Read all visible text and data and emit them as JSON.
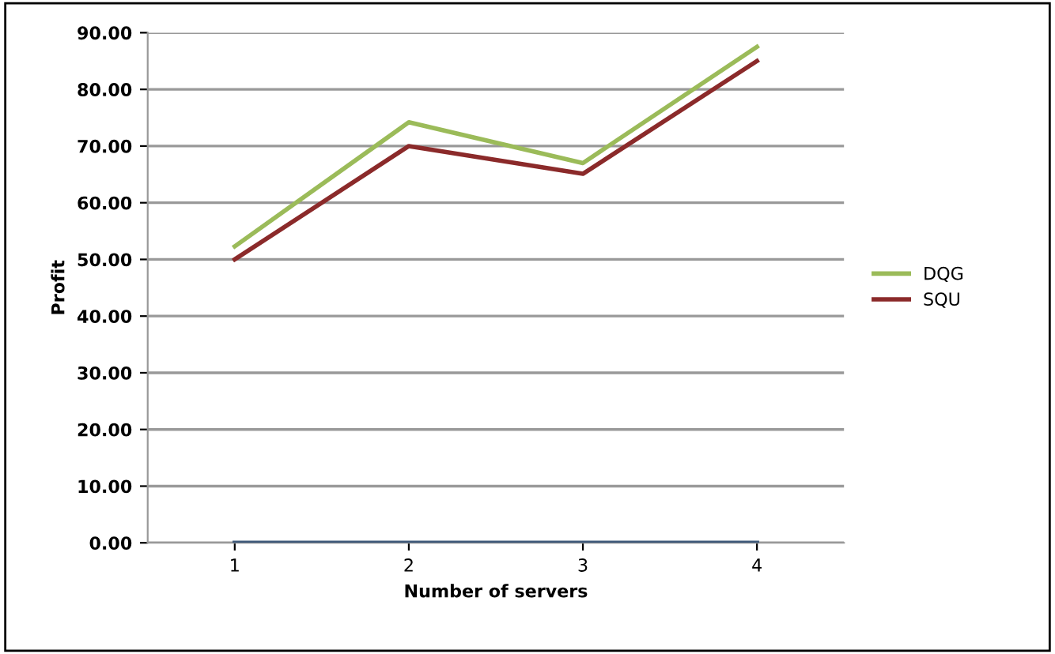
{
  "chart_data": {
    "type": "line",
    "xlabel": "Number of servers",
    "ylabel": "Profit",
    "categories": [
      "1",
      "2",
      "3",
      "4"
    ],
    "series": [
      {
        "name": "DQG",
        "color": "#9bbb59",
        "values": [
          52.3,
          74.2,
          67,
          87.5
        ]
      },
      {
        "name": "SQU",
        "color": "#8b2a2a",
        "values": [
          50,
          70,
          65.1,
          85
        ]
      },
      {
        "color": "#3f5a7a",
        "values": [
          0,
          0,
          0,
          0
        ]
      }
    ],
    "ylim": [
      0,
      90
    ],
    "yticks": [
      {
        "value": 0,
        "label": "0.00"
      },
      {
        "value": 10,
        "label": "10.00"
      },
      {
        "value": 20,
        "label": "20.00"
      },
      {
        "value": 30,
        "label": "30.00"
      },
      {
        "value": 40,
        "label": "40.00"
      },
      {
        "value": 50,
        "label": "50.00"
      },
      {
        "value": 60,
        "label": "60.00"
      },
      {
        "value": 70,
        "label": "70.00"
      },
      {
        "value": 80,
        "label": "80.00"
      },
      {
        "value": 90,
        "label": "90.00"
      }
    ],
    "grid": "y",
    "legend": "right",
    "marker": "none",
    "line_style": "solid"
  }
}
